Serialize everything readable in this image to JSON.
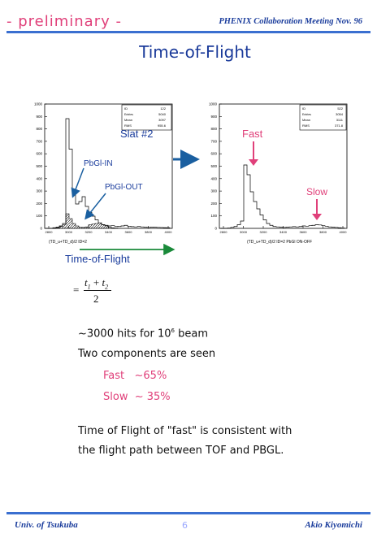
{
  "header": {
    "preliminary": "- preliminary -",
    "meeting": "PHENIX Collaboration Meeting  Nov. 96"
  },
  "title": "Time-of-Flight",
  "left_plot": {
    "stats": {
      "id_label": "ID",
      "id_value": "122",
      "entries_label": "Entries",
      "entries_value": "5040",
      "mean_label": "Mean",
      "mean_value": "3097",
      "rms_label": "RMS",
      "rms_value": "955.6"
    },
    "y_ticks": [
      "0",
      "100",
      "200",
      "300",
      "400",
      "500",
      "600",
      "700",
      "800",
      "900",
      "1000"
    ],
    "x_ticks": [
      "2800",
      "3000",
      "3200",
      "3400",
      "3600",
      "3800",
      "4000"
    ],
    "xlabel": "(TD_u+TD_d)/2 ID=2",
    "slat_label": "Slat #2",
    "pbgl_in": "PbGl-IN",
    "pbgl_out": "PbGl-OUT"
  },
  "right_plot": {
    "stats": {
      "id_label": "ID",
      "id_value": "522",
      "entries_label": "Entries",
      "entries_value": "3054",
      "mean_label": "Mean",
      "mean_value": "3111",
      "rms_label": "RMS",
      "rms_value": "371.8"
    },
    "y_ticks": [
      "0",
      "100",
      "200",
      "300",
      "400",
      "500",
      "600",
      "700",
      "800",
      "900",
      "1000"
    ],
    "x_ticks": [
      "2800",
      "3000",
      "3200",
      "3400",
      "3600",
      "3800",
      "4000"
    ],
    "xlabel": "(TD_u+TD_d)/2 ID=2 PbGl ON-OFF",
    "fast_label": "Fast",
    "slow_label": "Slow"
  },
  "tof_label": "Time-of-Flight",
  "formula": {
    "equals": "=",
    "t1": "t",
    "sub1": "1",
    "plus": "+",
    "t2": "t",
    "sub2": "2",
    "denominator": "2"
  },
  "body": {
    "hits_pre": "~3000 hits for 10",
    "hits_sup": "6",
    "hits_post": " beam",
    "two_components": "Two components are seen",
    "fast_line": "Fast   ~65%",
    "slow_line": "Slow  ~ 35%",
    "consistent_1": "Time of Flight of \"fast\" is consistent with",
    "consistent_2": "the flight path between TOF and PBGL."
  },
  "footer": {
    "left": "Univ. of Tsukuba",
    "page": "6",
    "right": "Akio Kiyomichi"
  },
  "colors": {
    "blue": "#1a3c9c",
    "pink": "#e0407a",
    "arrow_green": "#1a8a3a",
    "arrow_blue": "#1a5fa0"
  }
}
